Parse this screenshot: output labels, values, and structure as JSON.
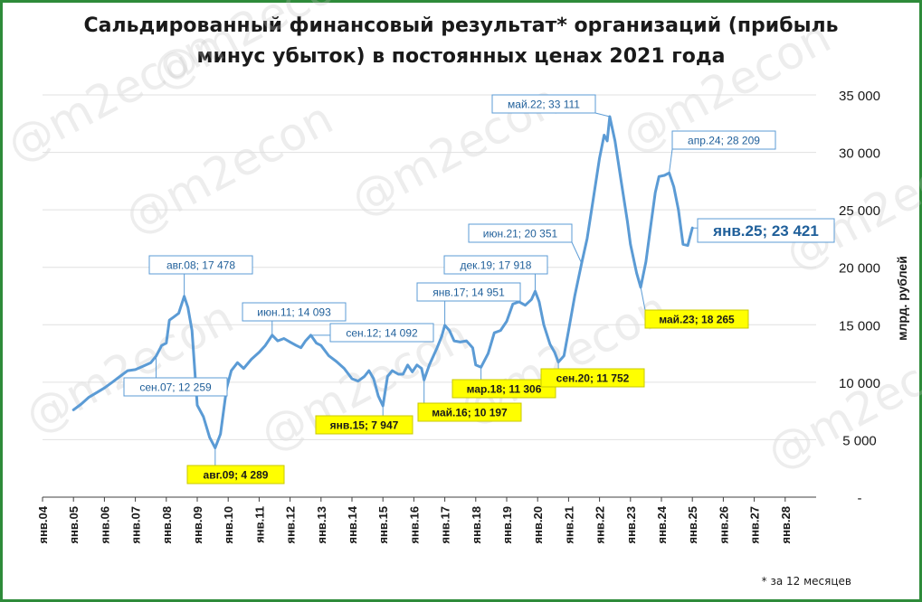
{
  "chart_data": {
    "type": "line",
    "title_line1": "Сальдированный финансовый результат* организаций (прибыль",
    "title_line2": "минус убыток) в постоянных ценах 2021 года",
    "ylabel": "млрд. рублей",
    "footnote": "* за 12 месяцев",
    "watermark": "@m2econ",
    "ylim": [
      0,
      35000
    ],
    "yticks": [
      {
        "value": 0,
        "label": "-"
      },
      {
        "value": 5000,
        "label": "5 000"
      },
      {
        "value": 10000,
        "label": "10 000"
      },
      {
        "value": 15000,
        "label": "15 000"
      },
      {
        "value": 20000,
        "label": "20 000"
      },
      {
        "value": 25000,
        "label": "25 000"
      },
      {
        "value": 30000,
        "label": "30 000"
      },
      {
        "value": 35000,
        "label": "35 000"
      }
    ],
    "xlim": [
      2004,
      2029
    ],
    "xticks": [
      {
        "year": 2004,
        "label": "янв.04"
      },
      {
        "year": 2005,
        "label": "янв.05"
      },
      {
        "year": 2006,
        "label": "янв.06"
      },
      {
        "year": 2007,
        "label": "янв.07"
      },
      {
        "year": 2008,
        "label": "янв.08"
      },
      {
        "year": 2009,
        "label": "янв.09"
      },
      {
        "year": 2010,
        "label": "янв.10"
      },
      {
        "year": 2011,
        "label": "янв.11"
      },
      {
        "year": 2012,
        "label": "янв.12"
      },
      {
        "year": 2013,
        "label": "янв.13"
      },
      {
        "year": 2014,
        "label": "янв.14"
      },
      {
        "year": 2015,
        "label": "янв.15"
      },
      {
        "year": 2016,
        "label": "янв.16"
      },
      {
        "year": 2017,
        "label": "янв.17"
      },
      {
        "year": 2018,
        "label": "янв.18"
      },
      {
        "year": 2019,
        "label": "янв.19"
      },
      {
        "year": 2020,
        "label": "янв.20"
      },
      {
        "year": 2021,
        "label": "янв.21"
      },
      {
        "year": 2022,
        "label": "янв.22"
      },
      {
        "year": 2023,
        "label": "янв.23"
      },
      {
        "year": 2024,
        "label": "янв.24"
      },
      {
        "year": 2025,
        "label": "янв.25"
      },
      {
        "year": 2026,
        "label": "янв.26"
      },
      {
        "year": 2027,
        "label": "янв.27"
      },
      {
        "year": 2028,
        "label": "янв.28"
      }
    ],
    "series": [
      {
        "color": "#5b9bd5",
        "points": [
          [
            2005.0,
            7600
          ],
          [
            2005.25,
            8100
          ],
          [
            2005.5,
            8700
          ],
          [
            2005.75,
            9100
          ],
          [
            2006.0,
            9500
          ],
          [
            2006.25,
            10000
          ],
          [
            2006.5,
            10500
          ],
          [
            2006.75,
            11000
          ],
          [
            2007.0,
            11100
          ],
          [
            2007.25,
            11400
          ],
          [
            2007.5,
            11700
          ],
          [
            2007.67,
            12259
          ],
          [
            2007.85,
            13200
          ],
          [
            2008.0,
            13400
          ],
          [
            2008.1,
            15400
          ],
          [
            2008.25,
            15700
          ],
          [
            2008.4,
            16000
          ],
          [
            2008.58,
            17478
          ],
          [
            2008.7,
            16500
          ],
          [
            2008.83,
            14500
          ],
          [
            2008.92,
            11000
          ],
          [
            2009.0,
            8000
          ],
          [
            2009.2,
            7000
          ],
          [
            2009.4,
            5200
          ],
          [
            2009.58,
            4289
          ],
          [
            2009.75,
            5500
          ],
          [
            2009.85,
            7500
          ],
          [
            2009.95,
            9500
          ],
          [
            2010.1,
            11000
          ],
          [
            2010.3,
            11700
          ],
          [
            2010.5,
            11200
          ],
          [
            2010.75,
            12000
          ],
          [
            2011.0,
            12600
          ],
          [
            2011.2,
            13200
          ],
          [
            2011.42,
            14093
          ],
          [
            2011.6,
            13600
          ],
          [
            2011.8,
            13800
          ],
          [
            2012.0,
            13500
          ],
          [
            2012.2,
            13200
          ],
          [
            2012.35,
            13000
          ],
          [
            2012.5,
            13600
          ],
          [
            2012.67,
            14092
          ],
          [
            2012.85,
            13400
          ],
          [
            2013.0,
            13200
          ],
          [
            2013.25,
            12300
          ],
          [
            2013.5,
            11800
          ],
          [
            2013.75,
            11200
          ],
          [
            2014.0,
            10300
          ],
          [
            2014.2,
            10100
          ],
          [
            2014.4,
            10500
          ],
          [
            2014.55,
            11000
          ],
          [
            2014.7,
            10300
          ],
          [
            2014.85,
            8800
          ],
          [
            2015.0,
            7947
          ],
          [
            2015.15,
            10500
          ],
          [
            2015.3,
            11000
          ],
          [
            2015.5,
            10700
          ],
          [
            2015.65,
            10700
          ],
          [
            2015.8,
            11500
          ],
          [
            2015.95,
            10900
          ],
          [
            2016.1,
            11500
          ],
          [
            2016.25,
            11200
          ],
          [
            2016.33,
            10197
          ],
          [
            2016.5,
            11500
          ],
          [
            2016.75,
            13000
          ],
          [
            2016.9,
            14000
          ],
          [
            2017.0,
            14951
          ],
          [
            2017.15,
            14500
          ],
          [
            2017.3,
            13600
          ],
          [
            2017.5,
            13500
          ],
          [
            2017.7,
            13600
          ],
          [
            2017.9,
            13000
          ],
          [
            2018.0,
            11500
          ],
          [
            2018.17,
            11306
          ],
          [
            2018.4,
            12500
          ],
          [
            2018.6,
            14300
          ],
          [
            2018.8,
            14500
          ],
          [
            2019.0,
            15300
          ],
          [
            2019.2,
            16800
          ],
          [
            2019.4,
            17000
          ],
          [
            2019.6,
            16700
          ],
          [
            2019.8,
            17200
          ],
          [
            2019.92,
            17918
          ],
          [
            2020.05,
            17000
          ],
          [
            2020.2,
            15000
          ],
          [
            2020.4,
            13300
          ],
          [
            2020.55,
            12600
          ],
          [
            2020.67,
            11752
          ],
          [
            2020.85,
            12300
          ],
          [
            2021.0,
            14500
          ],
          [
            2021.2,
            17500
          ],
          [
            2021.42,
            20351
          ],
          [
            2021.6,
            22500
          ],
          [
            2021.8,
            26000
          ],
          [
            2022.0,
            29500
          ],
          [
            2022.15,
            31500
          ],
          [
            2022.25,
            31000
          ],
          [
            2022.33,
            33111
          ],
          [
            2022.5,
            31000
          ],
          [
            2022.7,
            27500
          ],
          [
            2022.9,
            24000
          ],
          [
            2023.0,
            22000
          ],
          [
            2023.2,
            19500
          ],
          [
            2023.33,
            18265
          ],
          [
            2023.5,
            20500
          ],
          [
            2023.65,
            23500
          ],
          [
            2023.8,
            26500
          ],
          [
            2023.92,
            27900
          ],
          [
            2024.1,
            28000
          ],
          [
            2024.25,
            28209
          ],
          [
            2024.4,
            27000
          ],
          [
            2024.55,
            25000
          ],
          [
            2024.7,
            22000
          ],
          [
            2024.85,
            21900
          ],
          [
            2025.0,
            23421
          ]
        ]
      }
    ],
    "annotations": [
      {
        "year": 2007.67,
        "value": 12259,
        "label": "сен.07;  12 259",
        "style": "blue",
        "bx": 137,
        "by": 418
      },
      {
        "year": 2008.58,
        "value": 17478,
        "label": "авг.08;  17 478",
        "style": "blue",
        "bx": 165,
        "by": 283
      },
      {
        "year": 2009.58,
        "value": 4289,
        "label": "авг.09;  4 289",
        "style": "yellow",
        "bx": 207,
        "by": 515
      },
      {
        "year": 2011.42,
        "value": 14093,
        "label": "июн.11;  14 093",
        "style": "blue",
        "bx": 268,
        "by": 335
      },
      {
        "year": 2012.67,
        "value": 14092,
        "label": "сен.12;  14 092",
        "style": "blue",
        "bx": 365,
        "by": 358
      },
      {
        "year": 2015.0,
        "value": 7947,
        "label": "янв.15;  7 947",
        "style": "yellow",
        "bx": 349,
        "by": 460
      },
      {
        "year": 2016.33,
        "value": 10197,
        "label": "май.16;  10 197",
        "style": "yellow",
        "bx": 462,
        "by": 446
      },
      {
        "year": 2017.0,
        "value": 14951,
        "label": "янв.17;  14 951",
        "style": "blue",
        "bx": 461,
        "by": 313
      },
      {
        "year": 2018.17,
        "value": 11306,
        "label": "мар.18;  11 306",
        "style": "yellow",
        "bx": 500,
        "by": 420
      },
      {
        "year": 2019.92,
        "value": 17918,
        "label": "дек.19;  17 918",
        "style": "blue",
        "bx": 491,
        "by": 283
      },
      {
        "year": 2020.67,
        "value": 11752,
        "label": "сен.20;  11 752",
        "style": "yellow",
        "bx": 598,
        "by": 408
      },
      {
        "year": 2021.42,
        "value": 20351,
        "label": "июн.21;  20 351",
        "style": "blue",
        "bx": 518,
        "by": 248
      },
      {
        "year": 2022.33,
        "value": 33111,
        "label": "май.22;  33 111",
        "style": "blue",
        "bx": 544,
        "by": 105
      },
      {
        "year": 2023.33,
        "value": 18265,
        "label": "май.23;  18 265",
        "style": "yellow",
        "bx": 713,
        "by": 343
      },
      {
        "year": 2024.25,
        "value": 28209,
        "label": "апр.24;  28 209",
        "style": "blue",
        "bx": 743,
        "by": 145
      },
      {
        "year": 2025.0,
        "value": 23421,
        "label": "янв.25;  23 421",
        "style": "blue-large",
        "bx": 771,
        "by": 242
      }
    ]
  }
}
